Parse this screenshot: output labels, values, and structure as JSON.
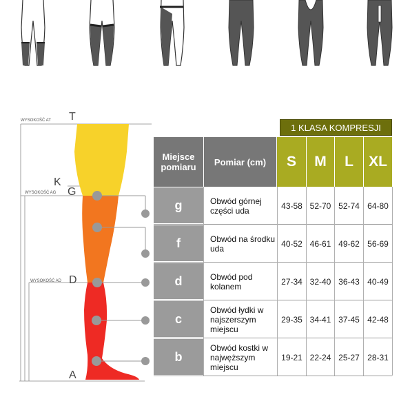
{
  "diagram": {
    "letters": {
      "T": "T",
      "K": "K",
      "G": "G",
      "D": "D",
      "A": "A"
    },
    "height_labels": {
      "AT": "WYSOKOŚĆ AT",
      "AG": "WYSOKOŚĆ AG",
      "AD": "WYSOKOŚĆ AD"
    }
  },
  "table": {
    "compression_class": "1 KLASA KOMPRESJI",
    "header_location": "Miejsce pomiaru",
    "header_measurement": "Pomiar (cm)",
    "sizes": [
      "S",
      "M",
      "L",
      "XL"
    ],
    "rows": [
      {
        "code": "g",
        "desc": "Obwód górnej części uda",
        "values": [
          "43-58",
          "52-70",
          "52-74",
          "64-80"
        ]
      },
      {
        "code": "f",
        "desc": "Obwód na środku uda",
        "values": [
          "40-52",
          "46-61",
          "49-62",
          "56-69"
        ]
      },
      {
        "code": "d",
        "desc": "Obwód pod kolanem",
        "values": [
          "27-34",
          "32-40",
          "36-43",
          "40-49"
        ]
      },
      {
        "code": "c",
        "desc": "Obwód łydki w najszerszym miejscu",
        "values": [
          "29-35",
          "34-41",
          "37-45",
          "42-48"
        ]
      },
      {
        "code": "b",
        "desc": "Obwód kostki w najwęższym miejscu",
        "values": [
          "19-21",
          "22-24",
          "25-27",
          "28-31"
        ]
      }
    ]
  },
  "colors": {
    "thigh_top": "#f7d22a",
    "thigh_mid": "#f2761f",
    "lower_leg": "#ee2a24",
    "size_header": "#a9ab22",
    "compression_header": "#6d6f0c",
    "label_gray": "#9b9b9b",
    "header_gray": "#777777"
  }
}
